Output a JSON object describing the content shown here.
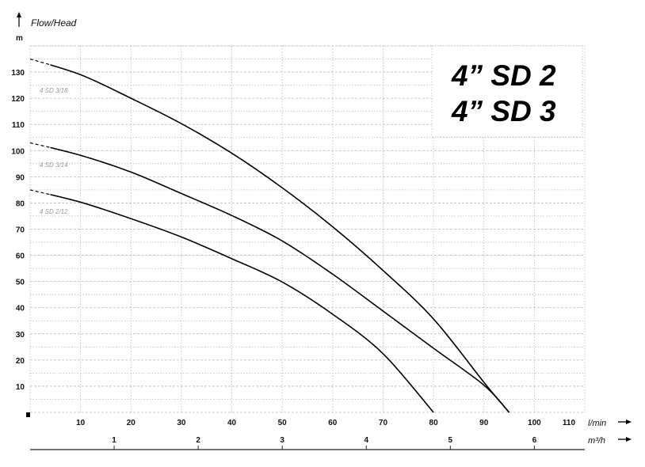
{
  "chart_data": {
    "type": "line",
    "title_lines": [
      "4” SD  2",
      "4” SD  3"
    ],
    "ylabel": "Flow/Head",
    "yunit": "m",
    "xunit": "l/min",
    "x2unit": "m³/h",
    "xlim": [
      0,
      110
    ],
    "ylim": [
      0,
      140
    ],
    "x_ticks": [
      10,
      20,
      30,
      40,
      50,
      60,
      70,
      80,
      90,
      100,
      110
    ],
    "y_ticks": [
      10,
      20,
      30,
      40,
      50,
      60,
      70,
      80,
      90,
      100,
      110,
      120,
      130
    ],
    "x2_ticks": [
      1,
      2,
      3,
      4,
      5,
      6
    ],
    "grid": true,
    "dashed_until": 4,
    "series": [
      {
        "name": "4 SD 3/18",
        "x": [
          0,
          10,
          20,
          30,
          40,
          50,
          60,
          70,
          80,
          90,
          95
        ],
        "y": [
          135,
          129,
          120,
          110.3,
          99,
          85.8,
          70.9,
          54.2,
          35.7,
          11.5,
          0
        ]
      },
      {
        "name": "4 SD 3/14",
        "x": [
          0,
          10,
          20,
          30,
          40,
          50,
          60,
          70,
          80,
          90,
          95
        ],
        "y": [
          103,
          98.2,
          91.8,
          83.6,
          75.2,
          65.5,
          52.8,
          38.7,
          24.5,
          10.4,
          0
        ]
      },
      {
        "name": "4 SD 2/12",
        "x": [
          0,
          10,
          20,
          30,
          40,
          50,
          60,
          70,
          80
        ],
        "y": [
          85,
          80.3,
          74,
          67,
          58.7,
          49.8,
          37.5,
          22.4,
          0
        ]
      }
    ]
  }
}
